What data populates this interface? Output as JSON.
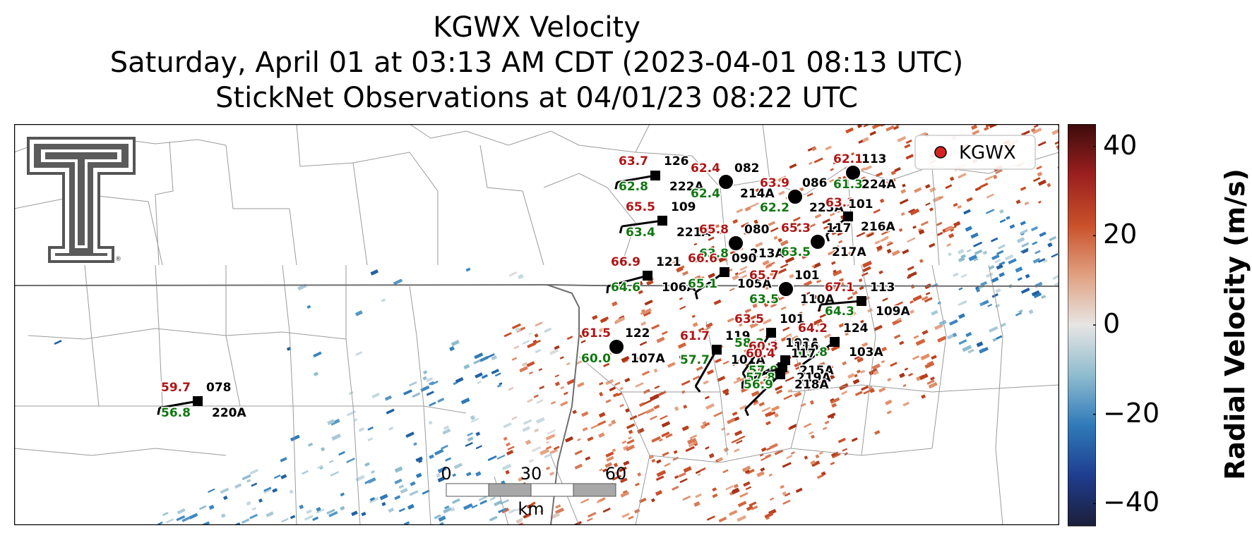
{
  "title": {
    "line1": "KGWX Velocity",
    "line2": "Saturday, April 01 at 03:13 AM CDT (2023-04-01 08:13 UTC)",
    "line3": "StickNet Observations at 04/01/23 08:22 UTC"
  },
  "legend": {
    "label": "KGWX",
    "marker_color": "#d62222",
    "placement": "top-right"
  },
  "logo": {
    "name": "Texas Tech double-T logo",
    "mark": "®"
  },
  "scalebar": {
    "ticks": [
      "0",
      "30",
      "60"
    ],
    "unit": "km"
  },
  "colorbar": {
    "label": "Radial Velocity (m/s)",
    "min": -45,
    "max": 45,
    "ticks": [
      {
        "value": 40,
        "label": "40"
      },
      {
        "value": 20,
        "label": "20"
      },
      {
        "value": 0,
        "label": "0"
      },
      {
        "value": -20,
        "label": "−20"
      },
      {
        "value": -40,
        "label": "−40"
      }
    ],
    "colors": [
      "#1b1f3a",
      "#1f3d8f",
      "#2f7ab9",
      "#8fbccf",
      "#e7e5e3",
      "#e0a080",
      "#c9502a",
      "#9a1f1f",
      "#3d0b0b"
    ]
  },
  "stations": [
    {
      "id": "126",
      "sub": "222A",
      "temp": "63.7",
      "dew": "62.8",
      "marker": "square"
    },
    {
      "id": "082",
      "sub": "214A",
      "temp": "62.4",
      "dew": "62.4",
      "marker": "circle"
    },
    {
      "id": "086",
      "sub": "223A",
      "temp": "63.9",
      "dew": "62.2",
      "marker": "circle"
    },
    {
      "id": "113",
      "sub": "224A",
      "temp": "62.1",
      "dew": "61.3",
      "marker": "circle"
    },
    {
      "id": "101",
      "sub": "216A",
      "temp": "63.3",
      "dew": "",
      "marker": "square"
    },
    {
      "id": "109",
      "sub": "221A",
      "temp": "65.5",
      "dew": "63.4",
      "marker": "square"
    },
    {
      "id": "080",
      "sub": "213A",
      "temp": "65.8",
      "dew": "63.8",
      "marker": "circle"
    },
    {
      "id": "117",
      "sub": "217A",
      "temp": "65.3",
      "dew": "63.5",
      "marker": "circle"
    },
    {
      "id": "121",
      "sub": "106A",
      "temp": "66.9",
      "dew": "64.6",
      "marker": "square"
    },
    {
      "id": "090",
      "sub": "105A",
      "temp": "66.6",
      "dew": "65.1",
      "marker": "square"
    },
    {
      "id": "101",
      "sub": "110A",
      "temp": "65.7",
      "dew": "63.5",
      "marker": "circle"
    },
    {
      "id": "113",
      "sub": "109A",
      "temp": "67.1",
      "dew": "64.3",
      "marker": "square"
    },
    {
      "id": "122",
      "sub": "107A",
      "temp": "61.5",
      "dew": "60.0",
      "marker": "circle"
    },
    {
      "id": "119",
      "sub": "101A",
      "temp": "61.7",
      "dew": "57.7",
      "marker": "square"
    },
    {
      "id": "101",
      "sub": "102A",
      "temp": "63.5",
      "dew": "58.2",
      "marker": "square"
    },
    {
      "id": "124",
      "sub": "103A",
      "temp": "64.2",
      "dew": "63.8",
      "marker": "square"
    },
    {
      "id": "116",
      "sub": "215A",
      "temp": "60.3",
      "dew": "57.9",
      "marker": "square"
    },
    {
      "id": "117",
      "sub": "219A",
      "temp": "60.4",
      "dew": "57.8",
      "marker": "square"
    },
    {
      "id": "",
      "sub": "218A",
      "temp": "",
      "dew": "56.9",
      "marker": "square"
    },
    {
      "id": "078",
      "sub": "220A",
      "temp": "59.7",
      "dew": "56.8",
      "marker": "square"
    }
  ]
}
